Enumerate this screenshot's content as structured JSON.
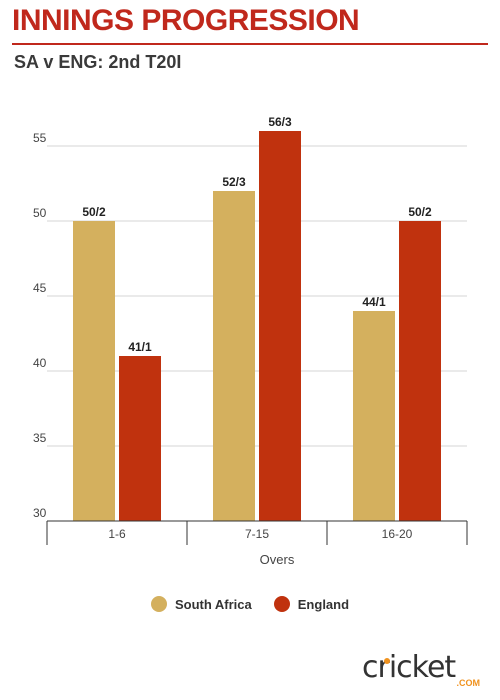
{
  "header": {
    "title": "INNINGS PROGRESSION",
    "subtitle": "SA v ENG: 2nd T20I"
  },
  "colors": {
    "brand_red": "#c0281c",
    "south_africa": "#d4b05e",
    "england": "#c0320e",
    "logo_accent": "#f0921e"
  },
  "chart_data": {
    "type": "bar",
    "categories": [
      "1-6",
      "7-15",
      "16-20"
    ],
    "series": [
      {
        "name": "South Africa",
        "values": [
          50,
          52,
          44
        ],
        "labels": [
          "50/2",
          "52/3",
          "44/1"
        ]
      },
      {
        "name": "England",
        "values": [
          41,
          56,
          50
        ],
        "labels": [
          "41/1",
          "56/3",
          "50/2"
        ]
      }
    ],
    "xlabel": "Overs",
    "ylabel": "",
    "ylim": [
      30,
      57
    ],
    "yticks": [
      30,
      35,
      40,
      45,
      50,
      55
    ],
    "grid": true,
    "legend": "bottom-center"
  },
  "logo": {
    "wordmark": "cricket",
    "domain": ".COM"
  }
}
